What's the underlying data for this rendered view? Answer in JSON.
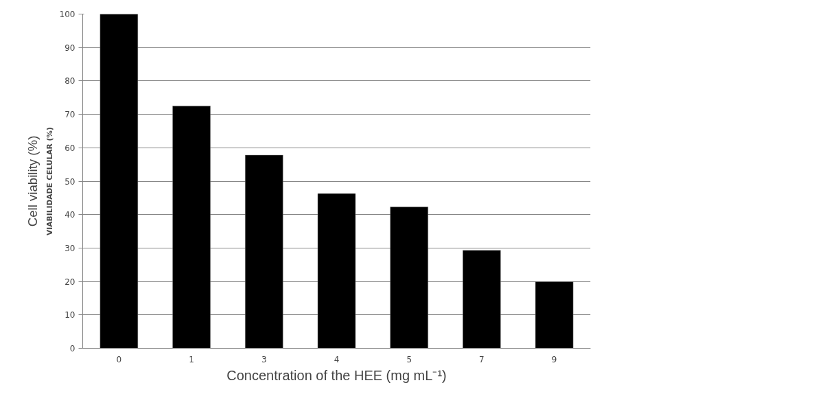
{
  "chart_data": {
    "type": "bar",
    "xlabel": "Concentration of the HEE (mg mL⁻¹)",
    "ylabel": "VIABILIDADE CELULAR (%)",
    "annotations": [
      "Cell viability (%)"
    ],
    "categories": [
      "0",
      "1",
      "3",
      "4",
      "5",
      "7",
      "9"
    ],
    "values": [
      100,
      72.5,
      57.8,
      46.3,
      42.3,
      29.3,
      19.9
    ],
    "color": "#000000",
    "ylim": [
      0,
      100
    ],
    "yticks": [
      0,
      10,
      20,
      30,
      40,
      50,
      60,
      70,
      80,
      90,
      100
    ],
    "grid": "y"
  }
}
